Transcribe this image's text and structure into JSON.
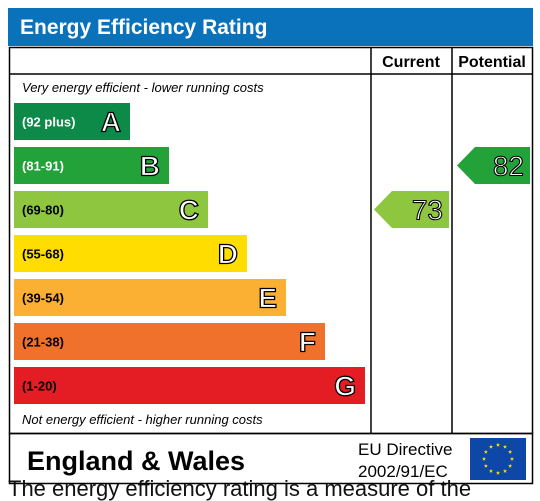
{
  "chart_data": {
    "type": "bar",
    "title": "Energy Efficiency Rating",
    "columns": [
      "Current",
      "Potential"
    ],
    "top_note": "Very energy efficient - lower running costs",
    "bottom_note": "Not energy efficient - higher running costs",
    "bands": [
      {
        "range": "(92 plus)",
        "letter": "A",
        "color": "#0e8a48"
      },
      {
        "range": "(81-91)",
        "letter": "B",
        "color": "#23a23a"
      },
      {
        "range": "(69-80)",
        "letter": "C",
        "color": "#8ec63f"
      },
      {
        "range": "(55-68)",
        "letter": "D",
        "color": "#ffdd00"
      },
      {
        "range": "(39-54)",
        "letter": "E",
        "color": "#fbb034"
      },
      {
        "range": "(21-38)",
        "letter": "F",
        "color": "#f0712c"
      },
      {
        "range": "(1-20)",
        "letter": "G",
        "color": "#e31d23"
      }
    ],
    "current": {
      "value": 73,
      "band": "C",
      "color": "#8ec63f"
    },
    "potential": {
      "value": 82,
      "band": "B",
      "color": "#23a23a"
    },
    "region": "England & Wales",
    "directive_line1": "EU Directive",
    "directive_line2": "2002/91/EC",
    "title_bg": "#0a72bb"
  },
  "footer_text": "The energy efficiency rating is a measure of the"
}
